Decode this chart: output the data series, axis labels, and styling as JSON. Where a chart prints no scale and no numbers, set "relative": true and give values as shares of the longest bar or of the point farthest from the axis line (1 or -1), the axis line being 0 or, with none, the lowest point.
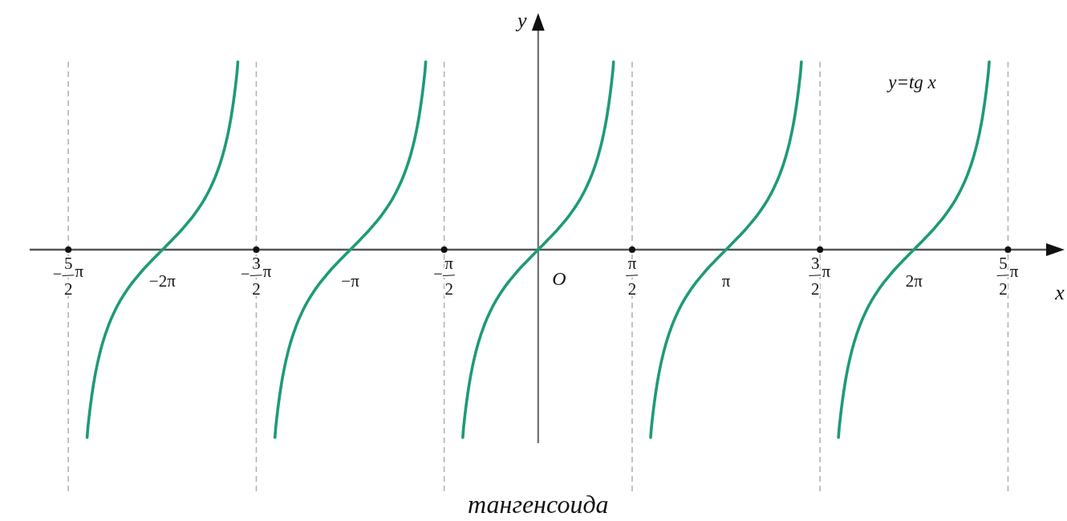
{
  "chart_data": {
    "type": "line",
    "relative": true,
    "xlabel": "x",
    "ylabel": "y",
    "annotations": [
      "y=tg x",
      {
        "text": "O",
        "x": 0,
        "y": 0
      },
      "тангенсоида"
    ],
    "xlim": [
      -8.5,
      8.8
    ],
    "xticks": [
      {
        "value": -7.854,
        "label": "−5/2π"
      },
      {
        "value": -6.283,
        "label": "−2π"
      },
      {
        "value": -4.712,
        "label": "−3/2π"
      },
      {
        "value": -3.142,
        "label": "−π"
      },
      {
        "value": -1.571,
        "label": "−π/2"
      },
      {
        "value": 1.571,
        "label": "π/2"
      },
      {
        "value": 3.142,
        "label": "π"
      },
      {
        "value": 4.712,
        "label": "3/2π"
      },
      {
        "value": 6.283,
        "label": "2π"
      },
      {
        "value": 7.854,
        "label": "5/2π"
      }
    ],
    "ref_lines": [
      {
        "axis": "x",
        "value": -7.854,
        "color": "#b3b3b3",
        "line_style": "dashed"
      },
      {
        "axis": "x",
        "value": -4.712,
        "color": "#b3b3b3",
        "line_style": "dashed"
      },
      {
        "axis": "x",
        "value": -1.571,
        "color": "#b3b3b3",
        "line_style": "dashed"
      },
      {
        "axis": "x",
        "value": 1.571,
        "color": "#b3b3b3",
        "line_style": "dashed"
      },
      {
        "axis": "x",
        "value": 4.712,
        "color": "#b3b3b3",
        "line_style": "dashed"
      },
      {
        "axis": "x",
        "value": 7.854,
        "color": "#b3b3b3",
        "line_style": "dashed"
      }
    ],
    "series": [
      {
        "color": "#1e9a78",
        "x": [
          -7.54,
          -7.53,
          -7.51,
          -7.48,
          -7.43,
          -7.38,
          -7.33,
          -7.28,
          -7.18,
          -7.08,
          -6.98,
          -6.88,
          -6.78,
          -6.68,
          -6.58,
          -6.48,
          -6.38,
          -6.28,
          -6.18,
          -6.08,
          -5.98,
          -5.88,
          -5.78,
          -5.68,
          -5.58,
          -5.48,
          -5.38,
          -5.28,
          -5.23,
          -5.18,
          -5.13,
          -5.08,
          -5.05,
          -5.03,
          -5.02
        ],
        "values": [
          -1,
          -0.958,
          -0.898,
          -0.819,
          -0.711,
          -0.625,
          -0.555,
          -0.496,
          -0.401,
          -0.328,
          -0.268,
          -0.218,
          -0.174,
          -0.135,
          -0.098,
          -0.065,
          -0.032,
          0,
          0.032,
          0.065,
          0.098,
          0.135,
          0.174,
          0.218,
          0.268,
          0.328,
          0.401,
          0.496,
          0.555,
          0.625,
          0.711,
          0.819,
          0.898,
          0.958,
          1
        ]
      },
      {
        "color": "#1e9a78",
        "x": [
          -4.4,
          -4.39,
          -4.37,
          -4.34,
          -4.29,
          -4.24,
          -4.19,
          -4.14,
          -4.04,
          -3.94,
          -3.84,
          -3.74,
          -3.64,
          -3.54,
          -3.44,
          -3.34,
          -3.24,
          -3.14,
          -3.04,
          -2.94,
          -2.84,
          -2.74,
          -2.64,
          -2.54,
          -2.44,
          -2.34,
          -2.24,
          -2.14,
          -2.09,
          -2.04,
          -1.99,
          -1.94,
          -1.91,
          -1.89,
          -1.88
        ],
        "values": [
          -1,
          -0.958,
          -0.898,
          -0.819,
          -0.711,
          -0.625,
          -0.555,
          -0.496,
          -0.401,
          -0.328,
          -0.268,
          -0.218,
          -0.174,
          -0.135,
          -0.098,
          -0.065,
          -0.032,
          0,
          0.032,
          0.065,
          0.098,
          0.135,
          0.174,
          0.218,
          0.268,
          0.328,
          0.401,
          0.496,
          0.555,
          0.625,
          0.711,
          0.819,
          0.898,
          0.958,
          1
        ]
      },
      {
        "color": "#1e9a78",
        "x": [
          -1.26,
          -1.25,
          -1.23,
          -1.2,
          -1.15,
          -1.1,
          -1.05,
          -1,
          -0.9,
          -0.8,
          -0.7,
          -0.6,
          -0.5,
          -0.4,
          -0.3,
          -0.2,
          -0.1,
          0,
          0.1,
          0.2,
          0.3,
          0.4,
          0.5,
          0.6,
          0.7,
          0.8,
          0.9,
          1,
          1.05,
          1.1,
          1.15,
          1.2,
          1.23,
          1.25,
          1.26
        ],
        "values": [
          -1,
          -0.958,
          -0.898,
          -0.819,
          -0.711,
          -0.625,
          -0.555,
          -0.496,
          -0.401,
          -0.328,
          -0.268,
          -0.218,
          -0.174,
          -0.135,
          -0.098,
          -0.065,
          -0.032,
          0,
          0.032,
          0.065,
          0.098,
          0.135,
          0.174,
          0.218,
          0.268,
          0.328,
          0.401,
          0.496,
          0.555,
          0.625,
          0.711,
          0.819,
          0.898,
          0.958,
          1
        ]
      },
      {
        "color": "#1e9a78",
        "x": [
          1.88,
          1.89,
          1.91,
          1.94,
          1.99,
          2.04,
          2.09,
          2.14,
          2.24,
          2.34,
          2.44,
          2.54,
          2.64,
          2.74,
          2.84,
          2.94,
          3.04,
          3.14,
          3.24,
          3.34,
          3.44,
          3.54,
          3.64,
          3.74,
          3.84,
          3.94,
          4.04,
          4.14,
          4.19,
          4.24,
          4.29,
          4.34,
          4.37,
          4.39,
          4.4
        ],
        "values": [
          -1,
          -0.958,
          -0.898,
          -0.819,
          -0.711,
          -0.625,
          -0.555,
          -0.496,
          -0.401,
          -0.328,
          -0.268,
          -0.218,
          -0.174,
          -0.135,
          -0.098,
          -0.065,
          -0.032,
          0,
          0.032,
          0.065,
          0.098,
          0.135,
          0.174,
          0.218,
          0.268,
          0.328,
          0.401,
          0.496,
          0.555,
          0.625,
          0.711,
          0.819,
          0.898,
          0.958,
          1
        ]
      },
      {
        "color": "#1e9a78",
        "x": [
          5.02,
          5.03,
          5.05,
          5.08,
          5.13,
          5.18,
          5.23,
          5.28,
          5.38,
          5.48,
          5.58,
          5.68,
          5.78,
          5.88,
          5.98,
          6.08,
          6.18,
          6.28,
          6.38,
          6.48,
          6.58,
          6.68,
          6.78,
          6.88,
          6.98,
          7.08,
          7.18,
          7.28,
          7.33,
          7.38,
          7.43,
          7.48,
          7.51,
          7.53,
          7.54
        ],
        "values": [
          -1,
          -0.958,
          -0.898,
          -0.819,
          -0.711,
          -0.625,
          -0.555,
          -0.496,
          -0.401,
          -0.328,
          -0.268,
          -0.218,
          -0.174,
          -0.135,
          -0.098,
          -0.065,
          -0.032,
          0,
          0.032,
          0.065,
          0.098,
          0.135,
          0.174,
          0.218,
          0.268,
          0.328,
          0.401,
          0.496,
          0.555,
          0.625,
          0.711,
          0.819,
          0.898,
          0.958,
          1
        ]
      }
    ]
  }
}
